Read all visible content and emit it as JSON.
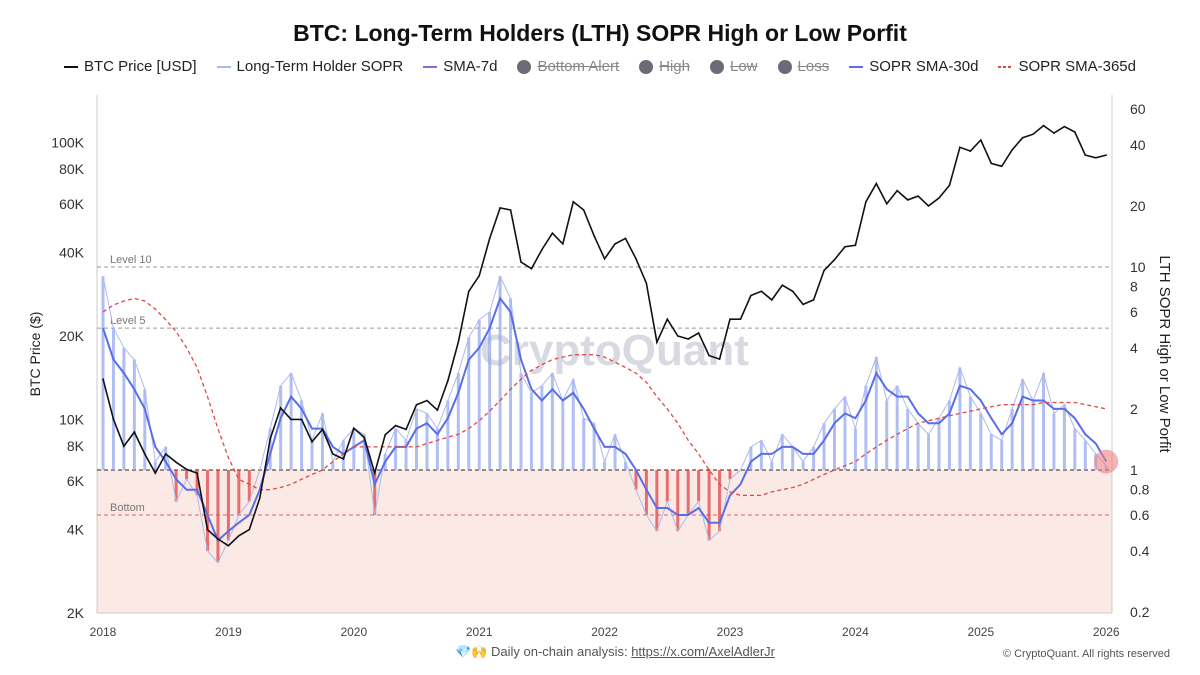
{
  "chart_data": {
    "type": "line",
    "title": "BTC: Long-Term Holders (LTH) SOPR High or Low Porfit",
    "ylabel_left": "BTC Price ($)",
    "ylabel_right": "LTH SOPR High or Low Porfit",
    "x_start": "2018-01",
    "x_step": "month",
    "x_ticks": [
      "2018",
      "2019",
      "2020",
      "2021",
      "2022",
      "2023",
      "2024",
      "2025",
      "2026"
    ],
    "y_left_scale": "log",
    "y_left_ticks": [
      "2K",
      "4K",
      "6K",
      "8K",
      "10K",
      "20K",
      "40K",
      "60K",
      "80K",
      "100K"
    ],
    "y_left_tick_values": [
      2000,
      4000,
      6000,
      8000,
      10000,
      20000,
      40000,
      60000,
      80000,
      100000
    ],
    "y_right_scale": "log",
    "y_right_ticks": [
      "0.2",
      "0.4",
      "0.6",
      "0.8",
      "1",
      "2",
      "4",
      "6",
      "8",
      "10",
      "20",
      "40",
      "60"
    ],
    "y_right_tick_values": [
      0.2,
      0.4,
      0.6,
      0.8,
      1,
      2,
      4,
      6,
      8,
      10,
      20,
      40,
      60
    ],
    "reference_lines": [
      {
        "label": "Level 10",
        "value": 10
      },
      {
        "label": "Level 5",
        "value": 5
      },
      {
        "label": "",
        "value": 1
      },
      {
        "label": "Bottom",
        "value": 0.6
      }
    ],
    "legend": [
      {
        "name": "BTC Price [USD]",
        "color": "#111111",
        "style": "line",
        "hidden": false
      },
      {
        "name": "Long-Term Holder SOPR",
        "color": "#aabbee",
        "style": "line",
        "hidden": false
      },
      {
        "name": "SMA-7d",
        "color": "#7a6ee0",
        "style": "line",
        "hidden": false
      },
      {
        "name": "Bottom Alert",
        "color": "#6b6b78",
        "style": "dot",
        "hidden": true
      },
      {
        "name": "High",
        "color": "#6b6b78",
        "style": "dot",
        "hidden": true
      },
      {
        "name": "Low",
        "color": "#6b6b78",
        "style": "dot",
        "hidden": true
      },
      {
        "name": "Loss",
        "color": "#6b6b78",
        "style": "dot",
        "hidden": true
      },
      {
        "name": "SOPR SMA-30d",
        "color": "#5a6ee8",
        "style": "line",
        "hidden": false
      },
      {
        "name": "SOPR SMA-365d",
        "color": "#e04848",
        "style": "dashed",
        "hidden": false
      }
    ],
    "btc_price": [
      14000,
      10000,
      8000,
      9000,
      7500,
      6400,
      7500,
      7000,
      6600,
      6400,
      4000,
      3700,
      3500,
      3800,
      4000,
      5200,
      8500,
      11000,
      10000,
      10000,
      8300,
      9200,
      7500,
      7200,
      9300,
      8600,
      6400,
      8800,
      9500,
      9200,
      11300,
      11700,
      10800,
      13800,
      19000,
      29000,
      33000,
      45000,
      58000,
      57000,
      37000,
      35000,
      41000,
      47000,
      43000,
      61000,
      57000,
      46000,
      38000,
      43000,
      45000,
      38000,
      31000,
      19000,
      23000,
      20000,
      19500,
      20500,
      17000,
      16500,
      23000,
      23000,
      28000,
      29000,
      27000,
      30500,
      29000,
      26000,
      27000,
      34500,
      37700,
      42000,
      42500,
      61000,
      71000,
      60000,
      67000,
      62000,
      64000,
      59000,
      63000,
      70000,
      96000,
      93000,
      102000,
      84000,
      82000,
      94000,
      104000,
      107000,
      115000,
      108000,
      114000,
      109000,
      90000,
      88000,
      90000
    ],
    "lth_sopr": [
      9,
      5,
      4,
      3.5,
      2.5,
      1.1,
      1.3,
      0.7,
      0.9,
      0.75,
      0.4,
      0.35,
      0.45,
      0.6,
      0.7,
      1,
      1.6,
      2.6,
      3,
      2.2,
      1.4,
      1.9,
      1.1,
      1.4,
      1.6,
      1.5,
      0.6,
      1.2,
      1.6,
      1.4,
      2,
      1.9,
      1.6,
      2.2,
      3,
      4.5,
      5.5,
      6,
      9,
      7,
      3,
      2.4,
      2.6,
      3,
      2.2,
      2.8,
      1.8,
      1.7,
      1.1,
      1.5,
      1.1,
      0.8,
      0.6,
      0.5,
      0.7,
      0.5,
      0.6,
      0.7,
      0.45,
      0.5,
      0.9,
      1.0,
      1.3,
      1.4,
      1.1,
      1.5,
      1.3,
      1.1,
      1.3,
      1.7,
      2,
      2.3,
      1.6,
      2.6,
      3.6,
      2.2,
      2.6,
      2,
      1.7,
      1.5,
      1.8,
      2.2,
      3.2,
      2.3,
      1.9,
      1.5,
      1.4,
      2,
      2.8,
      2.2,
      3,
      1.9,
      2.1,
      1.6,
      1.4,
      1.2,
      1.05
    ],
    "sopr_sma30": [
      5,
      3.5,
      3,
      2.5,
      2,
      1.3,
      1.1,
      0.9,
      0.8,
      0.8,
      0.6,
      0.45,
      0.5,
      0.55,
      0.6,
      0.8,
      1.2,
      1.8,
      2.3,
      2,
      1.6,
      1.6,
      1.3,
      1.2,
      1.3,
      1.4,
      0.85,
      1.1,
      1.3,
      1.3,
      1.6,
      1.7,
      1.5,
      1.8,
      2.4,
      3.5,
      4,
      5,
      7,
      6,
      3.5,
      2.5,
      2.2,
      2.5,
      2.2,
      2.4,
      2,
      1.6,
      1.3,
      1.3,
      1.2,
      1,
      0.8,
      0.65,
      0.65,
      0.6,
      0.6,
      0.65,
      0.55,
      0.55,
      0.75,
      0.85,
      1.1,
      1.2,
      1.2,
      1.3,
      1.3,
      1.2,
      1.2,
      1.4,
      1.7,
      1.9,
      1.8,
      2.2,
      3,
      2.5,
      2.3,
      2.3,
      1.9,
      1.7,
      1.7,
      1.9,
      2.6,
      2.5,
      2.2,
      1.8,
      1.5,
      1.7,
      2.3,
      2.2,
      2.2,
      2,
      2,
      1.8,
      1.5,
      1.35,
      1.1
    ],
    "sopr_sma365": [
      6,
      6.5,
      6.8,
      7,
      6.8,
      6.2,
      5.5,
      4.8,
      4,
      3.2,
      2.3,
      1.6,
      1.15,
      0.9,
      0.85,
      0.8,
      0.8,
      0.82,
      0.85,
      0.9,
      0.95,
      1,
      1.1,
      1.2,
      1.3,
      1.3,
      1.3,
      1.3,
      1.3,
      1.3,
      1.3,
      1.35,
      1.4,
      1.45,
      1.5,
      1.6,
      1.75,
      1.95,
      2.2,
      2.5,
      2.8,
      3.1,
      3.3,
      3.5,
      3.6,
      3.7,
      3.7,
      3.7,
      3.6,
      3.4,
      3.2,
      3,
      2.7,
      2.3,
      2,
      1.7,
      1.4,
      1.2,
      1,
      0.85,
      0.78,
      0.75,
      0.75,
      0.75,
      0.78,
      0.8,
      0.82,
      0.85,
      0.9,
      0.95,
      1,
      1.05,
      1.1,
      1.2,
      1.3,
      1.4,
      1.5,
      1.6,
      1.7,
      1.75,
      1.8,
      1.85,
      1.9,
      1.95,
      2,
      2.05,
      2.1,
      2.1,
      2.1,
      2.1,
      2.15,
      2.15,
      2.15,
      2.15,
      2.1,
      2.05,
      2
    ],
    "watermark": "CryptoQuant"
  },
  "footer": {
    "emoji": "💎🙌",
    "text": "Daily on-chain analysis:",
    "link": "https://x.com/AxelAdlerJr",
    "copyright": "© CryptoQuant. All rights reserved"
  }
}
